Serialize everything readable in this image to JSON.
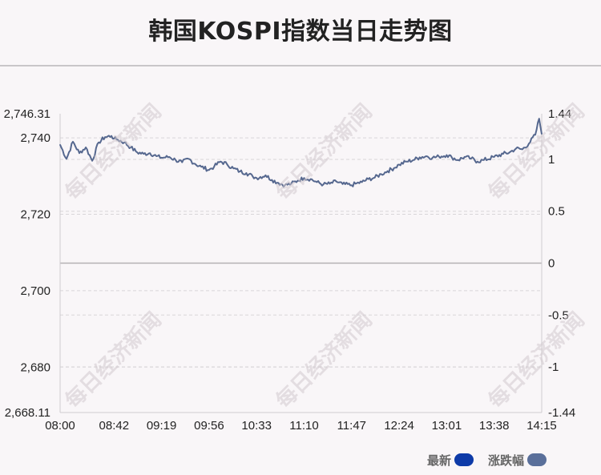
{
  "title": "韩国KOSPI指数当日走势图",
  "watermark_text": "每日经济新闻",
  "legend": {
    "items": [
      {
        "label": "最新",
        "color": "#0d3aa8"
      },
      {
        "label": "涨跌幅",
        "color": "#5a6f9a"
      }
    ]
  },
  "colors": {
    "line": "#56688f",
    "grid": "#d9d6d9",
    "zero_line": "#b4b1b4"
  },
  "chart_data": {
    "type": "line",
    "title": "韩国KOSPI指数当日走势图",
    "x_ticks": [
      "08:00",
      "08:42",
      "09:19",
      "09:56",
      "10:33",
      "11:10",
      "11:47",
      "12:24",
      "13:01",
      "13:38",
      "14:15"
    ],
    "y_left": {
      "min": 2668.11,
      "max": 2746.31,
      "ticks": [
        2746.31,
        2740,
        2720,
        2700,
        2680,
        2668.11
      ],
      "tick_labels": [
        "2,746.31",
        "2,740",
        "2,720",
        "2,700",
        "2,680",
        "2,668.11"
      ]
    },
    "y_right": {
      "min": -1.44,
      "max": 1.44,
      "ticks": [
        1.44,
        1,
        0.5,
        0,
        -0.5,
        -1,
        -1.44
      ],
      "tick_labels": [
        "1.44",
        "1",
        "0.5",
        "0",
        "-0.5",
        "-1",
        "-1.44"
      ]
    },
    "series": [
      {
        "name": "最新",
        "x": [
          "08:00",
          "08:05",
          "08:10",
          "08:15",
          "08:20",
          "08:25",
          "08:30",
          "08:35",
          "08:40",
          "08:42",
          "08:45",
          "08:50",
          "08:55",
          "09:00",
          "09:05",
          "09:10",
          "09:15",
          "09:19",
          "09:25",
          "09:30",
          "09:35",
          "09:40",
          "09:45",
          "09:50",
          "09:56",
          "10:00",
          "10:05",
          "10:10",
          "10:15",
          "10:20",
          "10:25",
          "10:30",
          "10:33",
          "10:40",
          "10:45",
          "10:50",
          "10:55",
          "11:00",
          "11:05",
          "11:10",
          "11:15",
          "11:20",
          "11:25",
          "11:30",
          "11:35",
          "11:40",
          "11:47",
          "11:50",
          "11:55",
          "12:00",
          "12:05",
          "12:10",
          "12:15",
          "12:20",
          "12:24",
          "12:30",
          "12:35",
          "12:40",
          "12:45",
          "12:50",
          "12:55",
          "13:01",
          "13:05",
          "13:10",
          "13:15",
          "13:20",
          "13:25",
          "13:30",
          "13:38",
          "13:45",
          "13:50",
          "13:55",
          "14:00",
          "14:05",
          "14:10",
          "14:13",
          "14:15"
        ],
        "values": [
          2738.2,
          2734.5,
          2739.0,
          2736.0,
          2737.5,
          2734.0,
          2738.8,
          2740.2,
          2740.5,
          2739.8,
          2739.5,
          2738.8,
          2737.5,
          2736.2,
          2735.8,
          2736.0,
          2735.2,
          2734.8,
          2735.0,
          2734.2,
          2733.6,
          2734.5,
          2733.2,
          2732.4,
          2731.6,
          2732.5,
          2733.8,
          2733.1,
          2732.0,
          2731.2,
          2730.8,
          2729.9,
          2729.5,
          2730.2,
          2729.0,
          2728.2,
          2727.6,
          2728.0,
          2728.8,
          2729.5,
          2729.2,
          2728.4,
          2727.8,
          2728.0,
          2728.6,
          2727.9,
          2727.6,
          2728.0,
          2728.4,
          2729.2,
          2729.6,
          2730.5,
          2731.3,
          2732.1,
          2733.0,
          2733.8,
          2734.2,
          2734.9,
          2735.2,
          2734.8,
          2735.1,
          2735.5,
          2734.9,
          2734.2,
          2735.0,
          2734.6,
          2733.8,
          2734.2,
          2735.0,
          2735.8,
          2736.2,
          2737.2,
          2737.0,
          2738.5,
          2740.8,
          2745.0,
          2741.0
        ]
      }
    ]
  }
}
